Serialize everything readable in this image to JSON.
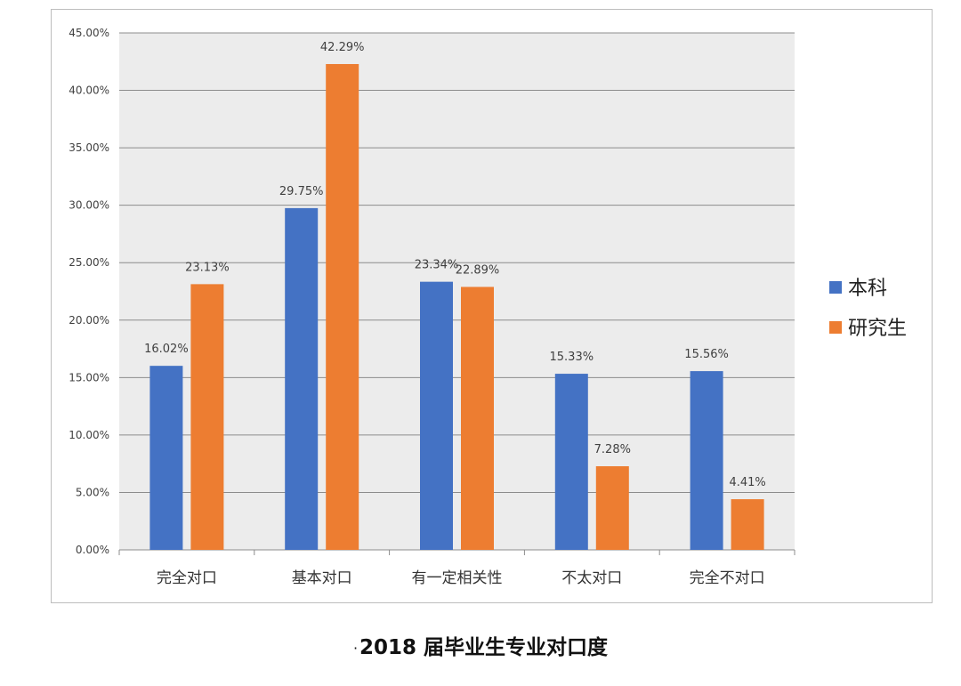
{
  "chart_data": {
    "type": "bar",
    "categories": [
      "完全对口",
      "基本对口",
      "有一定相关性",
      "不太对口",
      "完全不对口"
    ],
    "series": [
      {
        "name": "本科",
        "values": [
          16.02,
          29.75,
          23.34,
          15.33,
          15.56
        ],
        "labels": [
          "16.02%",
          "29.75%",
          "23.34%",
          "15.33%",
          "15.56%"
        ],
        "color": "#4472c4"
      },
      {
        "name": "研究生",
        "values": [
          23.13,
          42.29,
          22.89,
          7.28,
          4.41
        ],
        "labels": [
          "23.13%",
          "42.29%",
          "22.89%",
          "7.28%",
          "4.41%"
        ],
        "color": "#ed7d31"
      }
    ],
    "ylim": [
      0,
      45
    ],
    "yticks": [
      0,
      5,
      10,
      15,
      20,
      25,
      30,
      35,
      40,
      45
    ],
    "ytick_labels": [
      "0.00%",
      "5.00%",
      "10.00%",
      "15.00%",
      "20.00%",
      "25.00%",
      "30.00%",
      "35.00%",
      "40.00%",
      "45.00%"
    ],
    "grid": true,
    "legend_position": "right",
    "background": "#ececec",
    "caption_prefix": "·",
    "caption": "2018 届毕业生专业对口度"
  }
}
